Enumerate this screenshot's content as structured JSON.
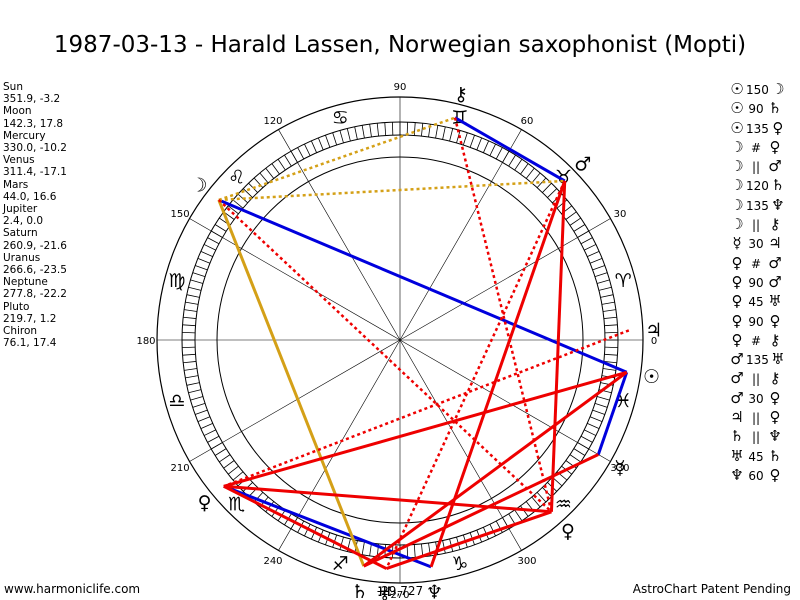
{
  "title": "1987-03-13 - Harald Lassen, Norwegian saxophonist (Mopti)",
  "footer": {
    "left": "www.harmoniclife.com",
    "right": "AstroChart Patent Pending"
  },
  "planets": [
    {
      "name": "Sun",
      "coords": "351.9, -3.2"
    },
    {
      "name": "Moon",
      "coords": "142.3, 17.8"
    },
    {
      "name": "Mercury",
      "coords": "330.0, -10.2"
    },
    {
      "name": "Venus",
      "coords": "311.4, -17.1"
    },
    {
      "name": "Mars",
      "coords": "44.0, 16.6"
    },
    {
      "name": "Jupiter",
      "coords": "2.4, 0.0"
    },
    {
      "name": "Saturn",
      "coords": "260.9, -21.6"
    },
    {
      "name": "Uranus",
      "coords": "266.6, -23.5"
    },
    {
      "name": "Neptune",
      "coords": "277.8, -22.2"
    },
    {
      "name": "Pluto",
      "coords": "219.7, 1.2"
    },
    {
      "name": "Chiron",
      "coords": "76.1, 17.4"
    }
  ],
  "aspects": [
    {
      "p1": "☉",
      "asp": "150",
      "p2": "☽"
    },
    {
      "p1": "☉",
      "asp": "90",
      "p2": "♄"
    },
    {
      "p1": "☉",
      "asp": "135",
      "p2": "♀"
    },
    {
      "p1": "☽",
      "asp": "#",
      "p2": "♀"
    },
    {
      "p1": "☽",
      "asp": "||",
      "p2": "♂"
    },
    {
      "p1": "☽",
      "asp": "120",
      "p2": "♄"
    },
    {
      "p1": "☽",
      "asp": "135",
      "p2": "♆"
    },
    {
      "p1": "☽",
      "asp": "||",
      "p2": "⚷"
    },
    {
      "p1": "☿",
      "asp": "30",
      "p2": "♃"
    },
    {
      "p1": "♀",
      "asp": "#",
      "p2": "♂"
    },
    {
      "p1": "♀",
      "asp": "90",
      "p2": "♂"
    },
    {
      "p1": "♀",
      "asp": "45",
      "p2": "♅"
    },
    {
      "p1": "♀",
      "asp": "90",
      "p2": "♀"
    },
    {
      "p1": "♀",
      "asp": "#",
      "p2": "⚷"
    },
    {
      "p1": "♂",
      "asp": "135",
      "p2": "♅"
    },
    {
      "p1": "♂",
      "asp": "||",
      "p2": "⚷"
    },
    {
      "p1": "♂",
      "asp": "30",
      "p2": "♀"
    },
    {
      "p1": "♃",
      "asp": "||",
      "p2": "♀"
    },
    {
      "p1": "♄",
      "asp": "||",
      "p2": "♆"
    },
    {
      "p1": "♅",
      "asp": "45",
      "p2": "♄"
    },
    {
      "p1": "♆",
      "asp": "60",
      "p2": "♀"
    }
  ],
  "wheel": {
    "degree_labels": [
      "0",
      "30",
      "60",
      "90",
      "120",
      "150",
      "180",
      "210",
      "240",
      "270",
      "300",
      "330"
    ],
    "zodiac_signs": [
      {
        "sign": "aries",
        "glyph": "♈"
      },
      {
        "sign": "taurus",
        "glyph": "♉"
      },
      {
        "sign": "gemini",
        "glyph": "♊"
      },
      {
        "sign": "cancer",
        "glyph": "♋"
      },
      {
        "sign": "leo",
        "glyph": "♌"
      },
      {
        "sign": "virgo",
        "glyph": "♍"
      },
      {
        "sign": "libra",
        "glyph": "♎"
      },
      {
        "sign": "scorpio",
        "glyph": "♏"
      },
      {
        "sign": "sagittarius",
        "glyph": "♐"
      },
      {
        "sign": "capricorn",
        "glyph": "♑"
      },
      {
        "sign": "aquarius",
        "glyph": "♒"
      },
      {
        "sign": "pisces",
        "glyph": "♓"
      }
    ],
    "bottom_extra_label": "-29,727",
    "planet_glyphs": [
      {
        "name": "sun",
        "glyph": "☉",
        "lon": 351.9
      },
      {
        "name": "moon",
        "glyph": "☽",
        "lon": 142.3
      },
      {
        "name": "mercury",
        "glyph": "☿",
        "lon": 330.0
      },
      {
        "name": "venus",
        "glyph": "♀",
        "lon": 311.4
      },
      {
        "name": "mars",
        "glyph": "♂",
        "lon": 44.0
      },
      {
        "name": "jupiter",
        "glyph": "♃",
        "lon": 2.4
      },
      {
        "name": "saturn",
        "glyph": "♄",
        "lon": 260.9
      },
      {
        "name": "uranus",
        "glyph": "♅",
        "lon": 266.6
      },
      {
        "name": "neptune",
        "glyph": "♆",
        "lon": 277.8
      },
      {
        "name": "pluto",
        "glyph": "♀",
        "lon": 219.7
      },
      {
        "name": "chiron",
        "glyph": "⚷",
        "lon": 76.1
      }
    ],
    "aspect_lines": [
      {
        "from": "moon",
        "to": "sun",
        "color": "#0000dd",
        "style": "solid"
      },
      {
        "from": "sun",
        "to": "mercury",
        "color": "#0000dd",
        "style": "solid"
      },
      {
        "from": "pluto",
        "to": "neptune",
        "color": "#0000dd",
        "style": "solid"
      },
      {
        "from": "chiron",
        "to": "mars",
        "color": "#0000dd",
        "style": "solid"
      },
      {
        "from": "moon",
        "to": "saturn",
        "color": "#d4a017",
        "style": "solid"
      },
      {
        "from": "moon",
        "to": "mars",
        "color": "#d4a017",
        "style": "dotted"
      },
      {
        "from": "moon",
        "to": "chiron",
        "color": "#d4a017",
        "style": "dotted"
      },
      {
        "from": "sun",
        "to": "pluto",
        "color": "#ee0000",
        "style": "solid"
      },
      {
        "from": "sun",
        "to": "saturn",
        "color": "#ee0000",
        "style": "solid"
      },
      {
        "from": "venus",
        "to": "pluto",
        "color": "#ee0000",
        "style": "solid"
      },
      {
        "from": "venus",
        "to": "mars",
        "color": "#ee0000",
        "style": "solid"
      },
      {
        "from": "venus",
        "to": "uranus",
        "color": "#ee0000",
        "style": "solid"
      },
      {
        "from": "pluto",
        "to": "uranus",
        "color": "#ee0000",
        "style": "solid"
      },
      {
        "from": "mars",
        "to": "neptune",
        "color": "#ee0000",
        "style": "solid"
      },
      {
        "from": "jupiter",
        "to": "pluto",
        "color": "#ee0000",
        "style": "dotted"
      },
      {
        "from": "moon",
        "to": "venus",
        "color": "#ee0000",
        "style": "dotted"
      },
      {
        "from": "mars",
        "to": "uranus",
        "color": "#ee0000",
        "style": "dotted"
      },
      {
        "from": "chiron",
        "to": "venus",
        "color": "#ee0000",
        "style": "dotted"
      },
      {
        "from": "mercury",
        "to": "saturn",
        "color": "#ee0000",
        "style": "solid"
      }
    ]
  }
}
